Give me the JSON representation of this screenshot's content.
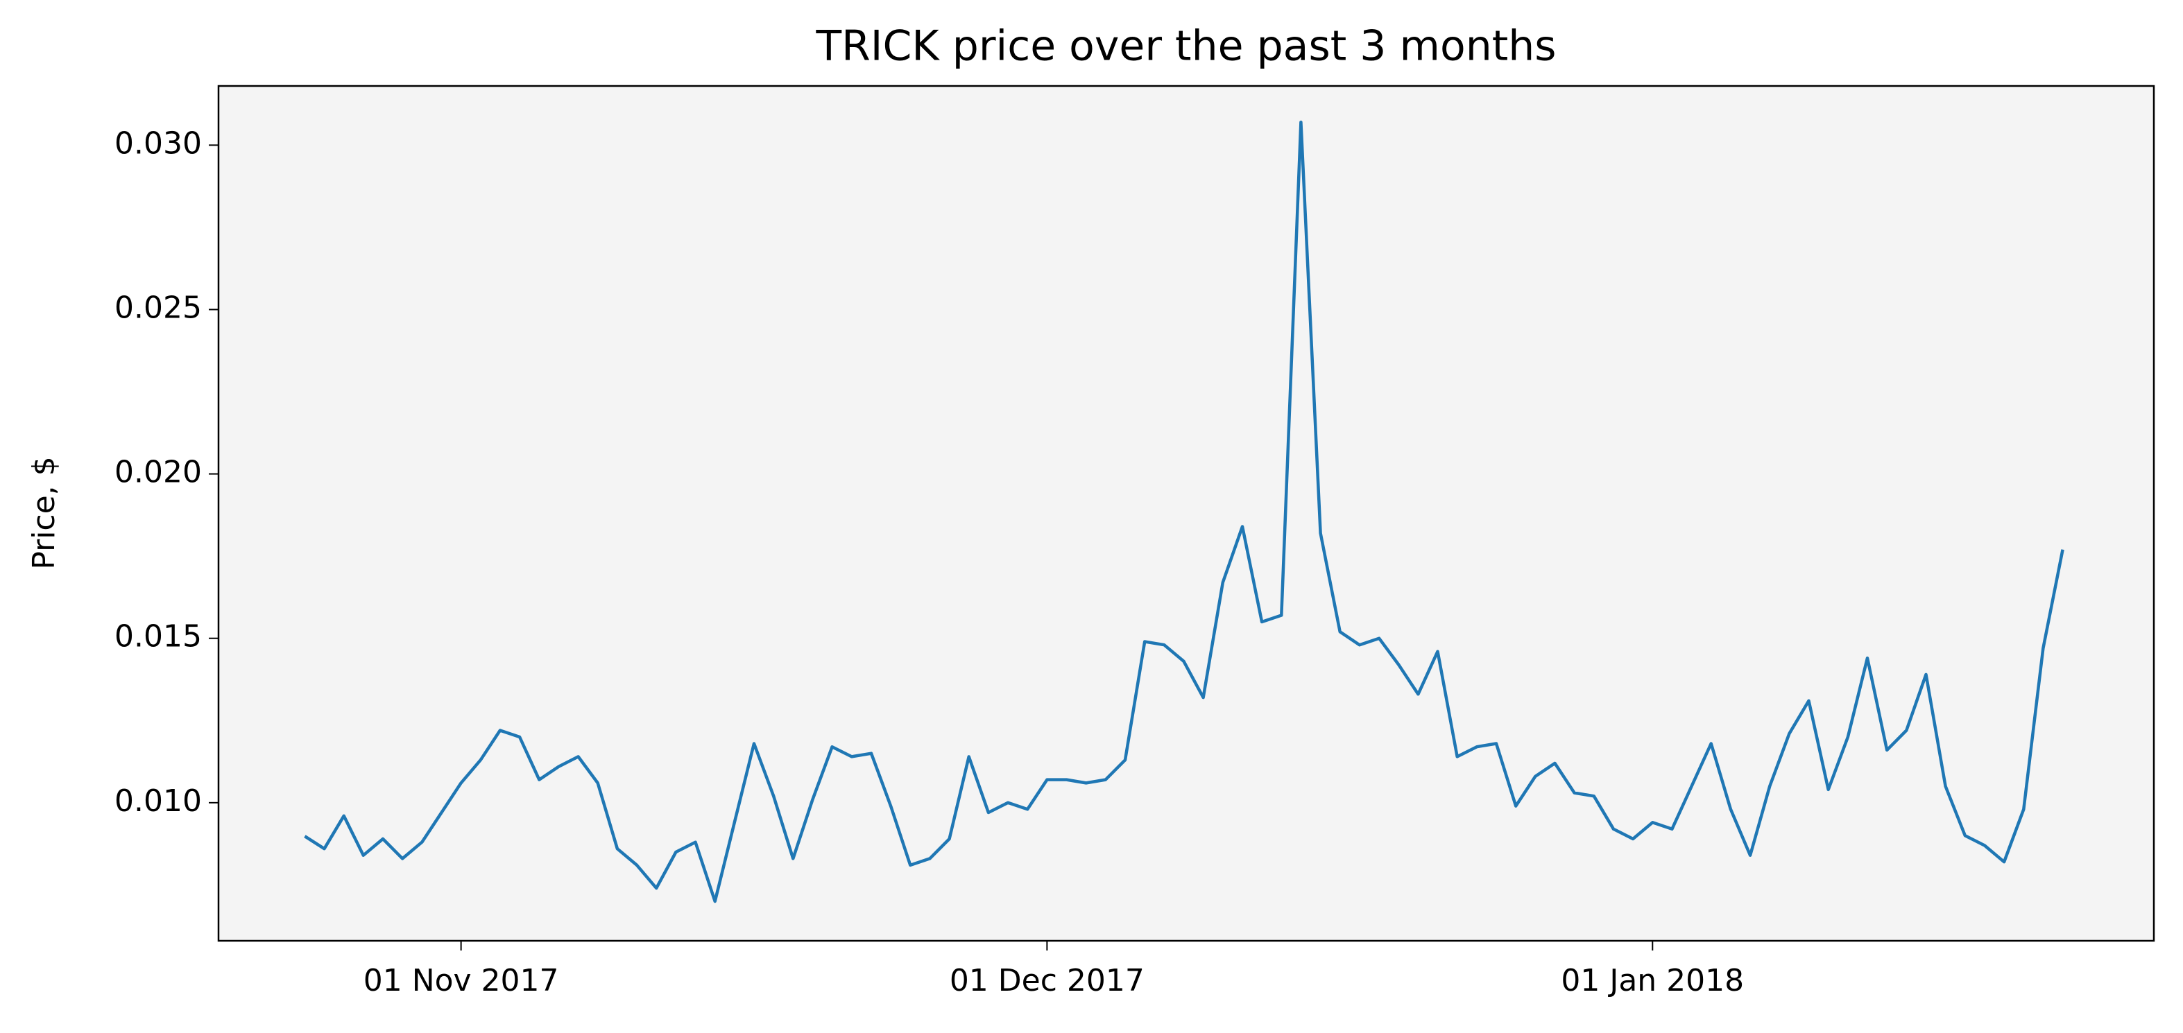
{
  "chart_data": {
    "type": "line",
    "title": "TRICK price over the past 3 months",
    "y_label": "Price, $",
    "x": [
      "2017-10-24",
      "2017-10-25",
      "2017-10-26",
      "2017-10-27",
      "2017-10-28",
      "2017-10-29",
      "2017-10-30",
      "2017-10-31",
      "2017-11-01",
      "2017-11-02",
      "2017-11-03",
      "2017-11-04",
      "2017-11-05",
      "2017-11-06",
      "2017-11-07",
      "2017-11-08",
      "2017-11-09",
      "2017-11-10",
      "2017-11-11",
      "2017-11-12",
      "2017-11-13",
      "2017-11-14",
      "2017-11-15",
      "2017-11-16",
      "2017-11-17",
      "2017-11-18",
      "2017-11-19",
      "2017-11-20",
      "2017-11-21",
      "2017-11-22",
      "2017-11-23",
      "2017-11-24",
      "2017-11-25",
      "2017-11-26",
      "2017-11-27",
      "2017-11-28",
      "2017-11-29",
      "2017-11-30",
      "2017-12-01",
      "2017-12-02",
      "2017-12-03",
      "2017-12-04",
      "2017-12-05",
      "2017-12-06",
      "2017-12-07",
      "2017-12-08",
      "2017-12-09",
      "2017-12-10",
      "2017-12-11",
      "2017-12-12",
      "2017-12-13",
      "2017-12-14",
      "2017-12-15",
      "2017-12-16",
      "2017-12-17",
      "2017-12-18",
      "2017-12-19",
      "2017-12-20",
      "2017-12-21",
      "2017-12-22",
      "2017-12-23",
      "2017-12-24",
      "2017-12-25",
      "2017-12-26",
      "2017-12-27",
      "2017-12-28",
      "2017-12-29",
      "2017-12-30",
      "2017-12-31",
      "2018-01-01",
      "2018-01-02",
      "2018-01-03",
      "2018-01-04",
      "2018-01-05",
      "2018-01-06",
      "2018-01-07",
      "2018-01-08",
      "2018-01-09",
      "2018-01-10",
      "2018-01-11",
      "2018-01-12",
      "2018-01-13",
      "2018-01-14",
      "2018-01-15",
      "2018-01-16",
      "2018-01-17",
      "2018-01-18",
      "2018-01-19",
      "2018-01-20",
      "2018-01-21",
      "2018-01-22"
    ],
    "series": [
      {
        "name": "TRICK",
        "color": "#1f77b4",
        "values": [
          0.00898,
          0.0086,
          0.0096,
          0.0084,
          0.0089,
          0.0083,
          0.0088,
          0.0097,
          0.0106,
          0.0113,
          0.0122,
          0.012,
          0.0107,
          0.0111,
          0.0114,
          0.0106,
          0.0086,
          0.0081,
          0.0074,
          0.0085,
          0.0088,
          0.007,
          0.0094,
          0.0118,
          0.0102,
          0.0083,
          0.0101,
          0.0117,
          0.0114,
          0.0115,
          0.0099,
          0.0081,
          0.0083,
          0.0089,
          0.0114,
          0.0097,
          0.01,
          0.0098,
          0.0107,
          0.0107,
          0.0106,
          0.0107,
          0.0113,
          0.0149,
          0.0148,
          0.0143,
          0.0132,
          0.0167,
          0.0184,
          0.0155,
          0.0157,
          0.0307,
          0.0182,
          0.0152,
          0.0148,
          0.015,
          0.0142,
          0.0133,
          0.0146,
          0.0114,
          0.0117,
          0.0118,
          0.0099,
          0.0108,
          0.0112,
          0.0103,
          0.0102,
          0.0092,
          0.0089,
          0.0094,
          0.0092,
          0.0105,
          0.0118,
          0.0098,
          0.0084,
          0.0105,
          0.0121,
          0.0131,
          0.0104,
          0.012,
          0.0144,
          0.0116,
          0.0122,
          0.0139,
          0.0105,
          0.009,
          0.0087,
          0.0082,
          0.0098,
          0.0147,
          0.0177
        ]
      }
    ],
    "xlim": [
      "2017-10-19T14:00",
      "2018-01-26T16:00"
    ],
    "xticks": [
      {
        "value": "2017-11-01",
        "label": "01 Nov 2017"
      },
      {
        "value": "2017-12-01",
        "label": "01 Dec 2017"
      },
      {
        "value": "2018-01-01",
        "label": "01 Jan 2018"
      }
    ],
    "ylim": [
      0.0058,
      0.0318
    ],
    "yticks": [
      {
        "value": 0.01,
        "label": "0.010"
      },
      {
        "value": 0.015,
        "label": "0.015"
      },
      {
        "value": 0.02,
        "label": "0.020"
      },
      {
        "value": 0.025,
        "label": "0.025"
      },
      {
        "value": 0.03,
        "label": "0.030"
      }
    ],
    "grid": false,
    "background": "#f4f4f4"
  }
}
